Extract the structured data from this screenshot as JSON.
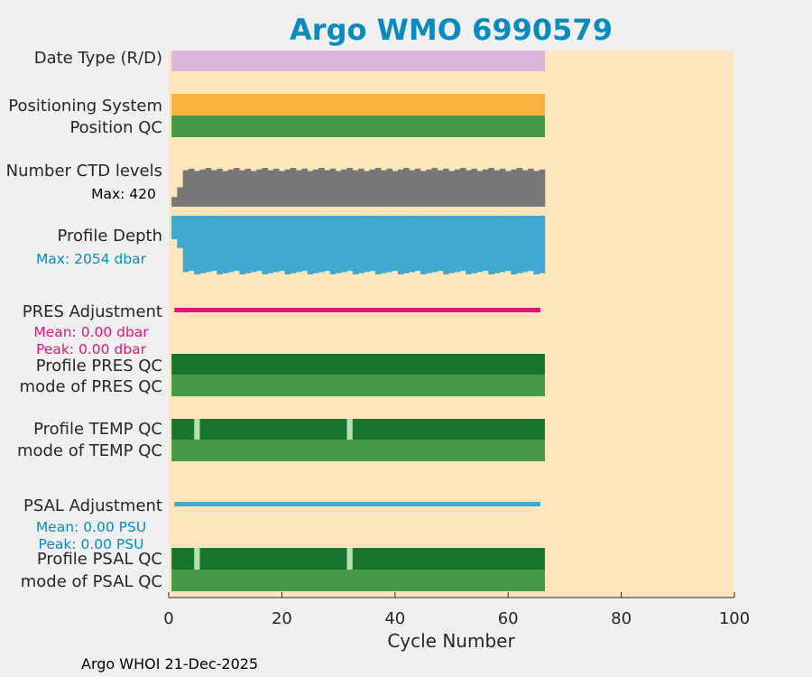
{
  "chart_data": {
    "type": "bar",
    "title": "Argo WMO 6990579",
    "xlabel": "Cycle Number",
    "xlim": [
      0,
      100
    ],
    "xticks": [
      "0",
      "20",
      "40",
      "60",
      "80",
      "100"
    ],
    "footer": "Argo WHOI 21-Dec-2025",
    "cycles_last": 66,
    "rows": [
      {
        "id": "date-type",
        "label": "Date Type (R/D)",
        "color": "#d9b5da",
        "kind": "full"
      },
      {
        "id": "positioning-system",
        "label": "Positioning System",
        "color": "#fbb340",
        "kind": "full"
      },
      {
        "id": "position-qc",
        "label": "Position QC",
        "color": "#469944",
        "kind": "full"
      },
      {
        "id": "ctd-levels",
        "label": "Number CTD levels",
        "sublabel": "Max: 420",
        "color": "#777777",
        "kind": "levels",
        "max": 420
      },
      {
        "id": "profile-depth",
        "label": "Profile Depth",
        "sublabel": "Max: 2054 dbar",
        "color": "#41a9d0",
        "kind": "depth",
        "max": 2054
      },
      {
        "id": "pres-adjustment",
        "label": "PRES Adjustment",
        "sublabels": [
          "Mean: 0.00 dbar",
          "Peak: 0.00 dbar"
        ],
        "color": "#e8127a",
        "kind": "adjust"
      },
      {
        "id": "profile-pres-qc",
        "label": "Profile PRES QC",
        "color": "#18752b",
        "kind": "full"
      },
      {
        "id": "mode-pres-qc",
        "label": "mode of PRES QC",
        "color": "#469944",
        "kind": "full"
      },
      {
        "id": "profile-temp-qc",
        "label": "Profile TEMP QC",
        "color": "#18752b",
        "kind": "qc",
        "flagged_cycles": [
          5,
          32
        ],
        "flag_color": "#b8dcb2"
      },
      {
        "id": "mode-temp-qc",
        "label": "mode of TEMP QC",
        "color": "#469944",
        "kind": "full"
      },
      {
        "id": "psal-adjustment",
        "label": "PSAL Adjustment",
        "sublabels": [
          "Mean: 0.00 PSU",
          "Peak: 0.00 PSU"
        ],
        "color": "#41a9d0",
        "kind": "adjust"
      },
      {
        "id": "profile-psal-qc",
        "label": "Profile PSAL QC",
        "color": "#18752b",
        "kind": "qc",
        "flagged_cycles": [
          5,
          32
        ],
        "flag_color": "#b8dcb2"
      },
      {
        "id": "mode-psal-qc",
        "label": "mode of PSAL QC",
        "color": "#469944",
        "kind": "full"
      }
    ],
    "colors": {
      "plot_bg": "#fde6bd",
      "title": "#0a8bbf",
      "sublabel_blue": "#0a8bbf",
      "sublabel_pink": "#e8127a"
    }
  }
}
